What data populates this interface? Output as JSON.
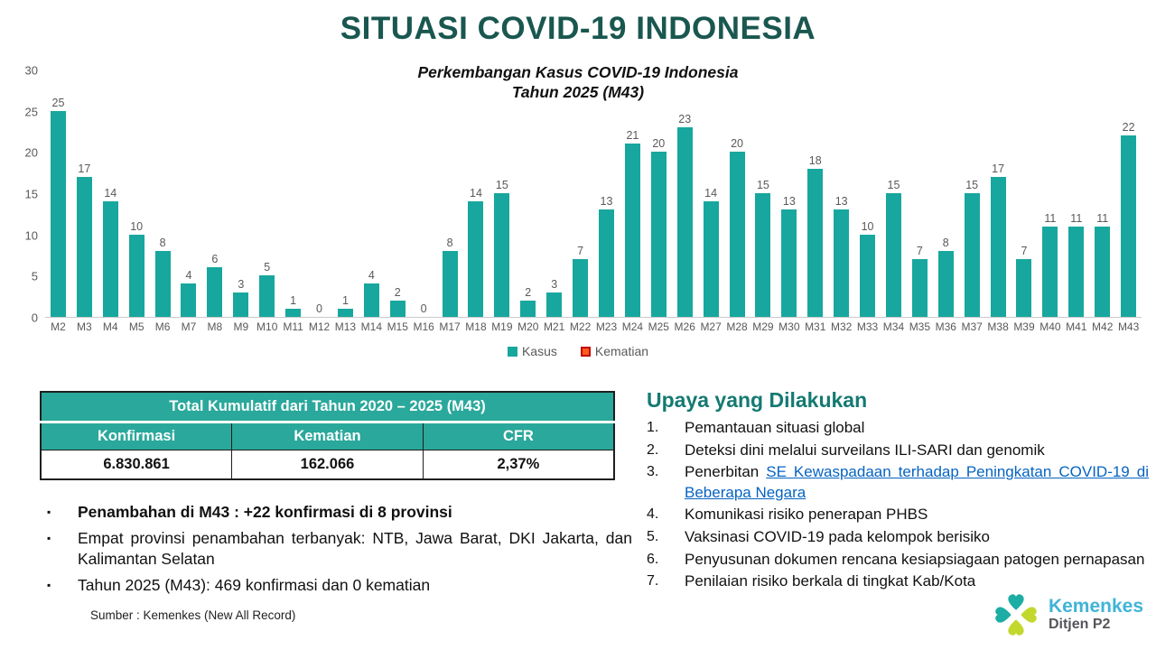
{
  "title": "SITUASI COVID-19 INDONESIA",
  "chart_data": {
    "type": "bar",
    "title": "Perkembangan Kasus COVID-19 Indonesia",
    "subtitle": "Tahun 2025 (M43)",
    "categories": [
      "M2",
      "M3",
      "M4",
      "M5",
      "M6",
      "M7",
      "M8",
      "M9",
      "M10",
      "M11",
      "M12",
      "M13",
      "M14",
      "M15",
      "M16",
      "M17",
      "M18",
      "M19",
      "M20",
      "M21",
      "M22",
      "M23",
      "M24",
      "M25",
      "M26",
      "M27",
      "M28",
      "M29",
      "M30",
      "M31",
      "M32",
      "M33",
      "M34",
      "M35",
      "M36",
      "M37",
      "M38",
      "M39",
      "M40",
      "M41",
      "M42",
      "M43"
    ],
    "series": [
      {
        "name": "Kasus",
        "color": "#17A79E",
        "values": [
          25,
          17,
          14,
          10,
          8,
          4,
          6,
          3,
          5,
          1,
          0,
          1,
          4,
          2,
          0,
          8,
          14,
          15,
          2,
          3,
          7,
          13,
          21,
          20,
          23,
          14,
          20,
          15,
          13,
          18,
          13,
          10,
          15,
          7,
          8,
          15,
          17,
          7,
          11,
          11,
          11,
          22
        ]
      }
    ],
    "legend": [
      {
        "label": "Kasus",
        "fill": "#17A79E",
        "border": "#17A79E"
      },
      {
        "label": "Kematian",
        "fill": "#FF5A1F",
        "border": "#C00000"
      }
    ],
    "ylim": [
      0,
      30
    ],
    "yticks": [
      0,
      5,
      10,
      15,
      20,
      25,
      30
    ],
    "grid": false,
    "legend_position": "bottom",
    "bar_labels": true
  },
  "table": {
    "title": "Total Kumulatif dari Tahun 2020 – 2025 (M43)",
    "headers": [
      "Konfirmasi",
      "Kematian",
      "CFR"
    ],
    "values": [
      "6.830.861",
      "162.066",
      "2,37%"
    ]
  },
  "bullets": [
    {
      "text": "Penambahan di M43 : +22 konfirmasi di 8 provinsi",
      "bold": true,
      "justify": false
    },
    {
      "text": "Empat provinsi penambahan terbanyak: NTB, Jawa Barat, DKI Jakarta, dan Kalimantan Selatan",
      "bold": false,
      "justify": true
    },
    {
      "text": "Tahun 2025 (M43): 469 konfirmasi dan 0 kematian",
      "bold": false,
      "justify": false
    }
  ],
  "source": "Sumber : Kemenkes (New All Record)",
  "upaya": {
    "heading": "Upaya yang Dilakukan",
    "items": [
      {
        "num": "1.",
        "text": "Pemantauan situasi global",
        "justify": false
      },
      {
        "num": "2.",
        "text": "Deteksi dini melalui surveilans ILI-SARI dan genomik",
        "justify": false
      },
      {
        "num": "3.",
        "prefix": "Penerbitan ",
        "link": "SE Kewaspadaan terhadap Peningkatan COVID-19 di Beberapa Negara",
        "justify": true
      },
      {
        "num": "4.",
        "text": "Komunikasi risiko penerapan PHBS",
        "justify": false
      },
      {
        "num": "5.",
        "text": "Vaksinasi COVID-19 pada kelompok berisiko",
        "justify": false
      },
      {
        "num": "6.",
        "text": "Penyusunan dokumen rencana kesiapsiagaan patogen pernapasan",
        "justify": true
      },
      {
        "num": "7.",
        "text": "Penilaian risiko berkala di tingkat Kab/Kota",
        "justify": false
      }
    ]
  },
  "logo": {
    "brand": "Kemenkes",
    "unit": "Ditjen P2",
    "teal": "#1CADA4",
    "lime": "#C3D82E"
  },
  "colors": {
    "title": "#19574F",
    "bar": "#17A79E",
    "table_header": "#2AA89B",
    "upaya_heading": "#147A72",
    "link": "#0563C1",
    "axis_text": "#595959"
  }
}
